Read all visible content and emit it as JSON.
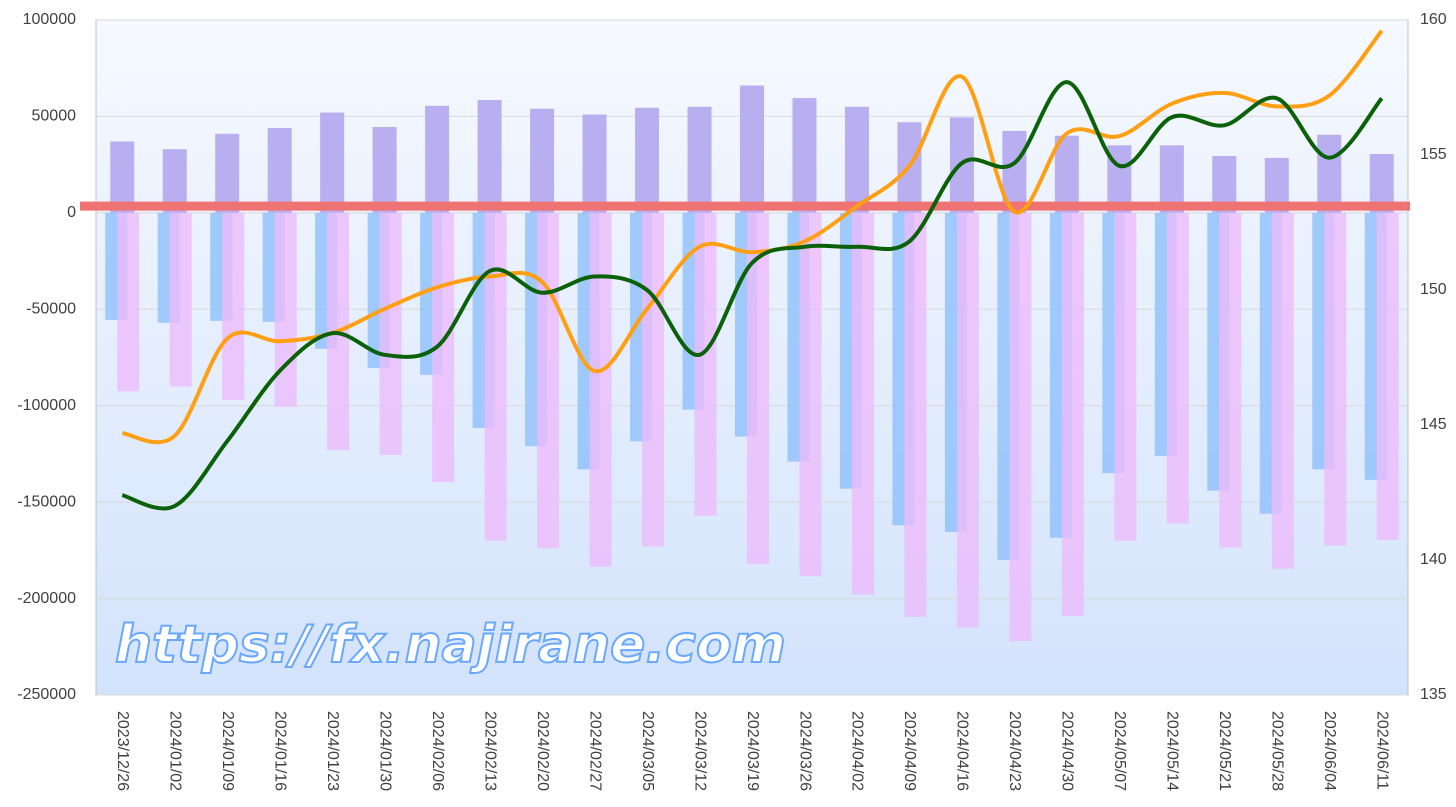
{
  "chart_data": {
    "type": "bar",
    "annotation": "https://fx.najirane.com",
    "categories": [
      "2023/12/26",
      "2024/01/02",
      "2024/01/09",
      "2024/01/16",
      "2024/01/23",
      "2024/01/30",
      "2024/02/06",
      "2024/02/13",
      "2024/02/20",
      "2024/02/27",
      "2024/03/05",
      "2024/03/12",
      "2024/03/19",
      "2024/03/26",
      "2024/04/02",
      "2024/04/09",
      "2024/04/16",
      "2024/04/23",
      "2024/04/30",
      "2024/05/07",
      "2024/05/14",
      "2024/05/21",
      "2024/05/28",
      "2024/06/04",
      "2024/06/11"
    ],
    "series": [
      {
        "type": "bar",
        "color": "#b9aef0",
        "values": [
          37000,
          33000,
          41000,
          44000,
          52000,
          44500,
          55500,
          58500,
          54000,
          51000,
          54500,
          55000,
          66000,
          59500,
          55000,
          47000,
          49500,
          42500,
          40000,
          35000,
          35000,
          29500,
          28500,
          40500,
          30500
        ]
      },
      {
        "type": "bar",
        "color": "#93c2fb",
        "values": [
          -55500,
          -57000,
          -56000,
          -56500,
          -70500,
          -80500,
          -84000,
          -111500,
          -121000,
          -133000,
          -118500,
          -102000,
          -116000,
          -129000,
          -143000,
          -162000,
          -165500,
          -180000,
          -168500,
          -135000,
          -126000,
          -144000,
          -156000,
          -133000,
          -138500
        ]
      },
      {
        "type": "bar",
        "color": "#ecbcfb",
        "values": [
          -92500,
          -90000,
          -97000,
          -100500,
          -123000,
          -125500,
          -139500,
          -170000,
          -174000,
          -183500,
          -173000,
          -157000,
          -182000,
          -188500,
          -198000,
          -209500,
          -215000,
          -222000,
          -209000,
          -170000,
          -161000,
          -173500,
          -184500,
          -172500,
          -169500
        ]
      },
      {
        "type": "line",
        "axis": "y2",
        "color": "#ffa014",
        "values": [
          144.7,
          144.6,
          148.2,
          148.1,
          148.4,
          149.3,
          150.1,
          150.5,
          150.3,
          147.0,
          149.3,
          151.6,
          151.4,
          151.8,
          153.1,
          154.6,
          157.9,
          152.9,
          155.8,
          155.7,
          156.9,
          157.3,
          156.8,
          157.2,
          159.6
        ]
      },
      {
        "type": "line",
        "axis": "y2",
        "color": "#0a6108",
        "values": [
          142.4,
          142.0,
          144.4,
          147.0,
          148.4,
          147.6,
          147.9,
          150.7,
          149.9,
          150.5,
          150.0,
          147.6,
          151.0,
          151.6,
          151.6,
          151.8,
          154.7,
          154.7,
          157.7,
          154.6,
          156.4,
          156.1,
          157.1,
          154.9,
          157.1
        ]
      }
    ],
    "hline": {
      "value": 3500,
      "color": "#f07373"
    },
    "ylim": [
      -250000,
      100000
    ],
    "yticks": [
      -250000,
      -200000,
      -150000,
      -100000,
      -50000,
      0,
      50000,
      100000
    ],
    "y2lim": [
      135,
      160
    ],
    "y2ticks": [
      135,
      140,
      145,
      150,
      155,
      160
    ],
    "grid": true
  }
}
